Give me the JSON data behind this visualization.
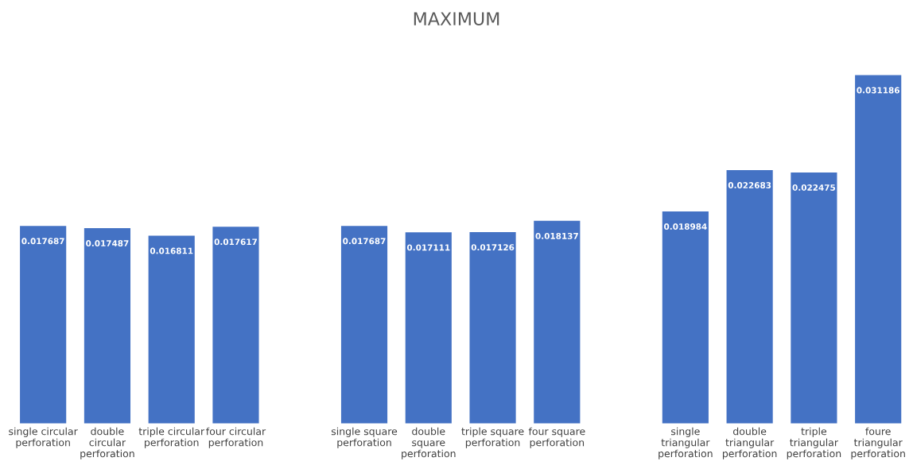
{
  "chart_data": {
    "type": "bar",
    "title": "MAXIMUM",
    "categories": [
      "single circular\nperforation",
      "double\ncircular\nperforation",
      "triple circular\nperforation",
      "four circular\nperforation",
      null,
      "single square\nperforation",
      "double\nsquare\nperforation",
      "triple square\nperforation",
      "four square\nperforation",
      null,
      "single\ntriangular\nperforation",
      "double\ntriangular\nperforation",
      "triple\ntriangular\nperforation",
      "foure\ntriangular\nperforation"
    ],
    "values": [
      0.017687,
      0.017487,
      0.016811,
      0.017617,
      null,
      0.017687,
      0.017111,
      0.017126,
      0.018137,
      null,
      0.018984,
      0.022683,
      0.022475,
      0.031186
    ],
    "color": "#4472c4",
    "data_labels": true,
    "grid": false,
    "legend": false,
    "tick_labels": "x"
  }
}
